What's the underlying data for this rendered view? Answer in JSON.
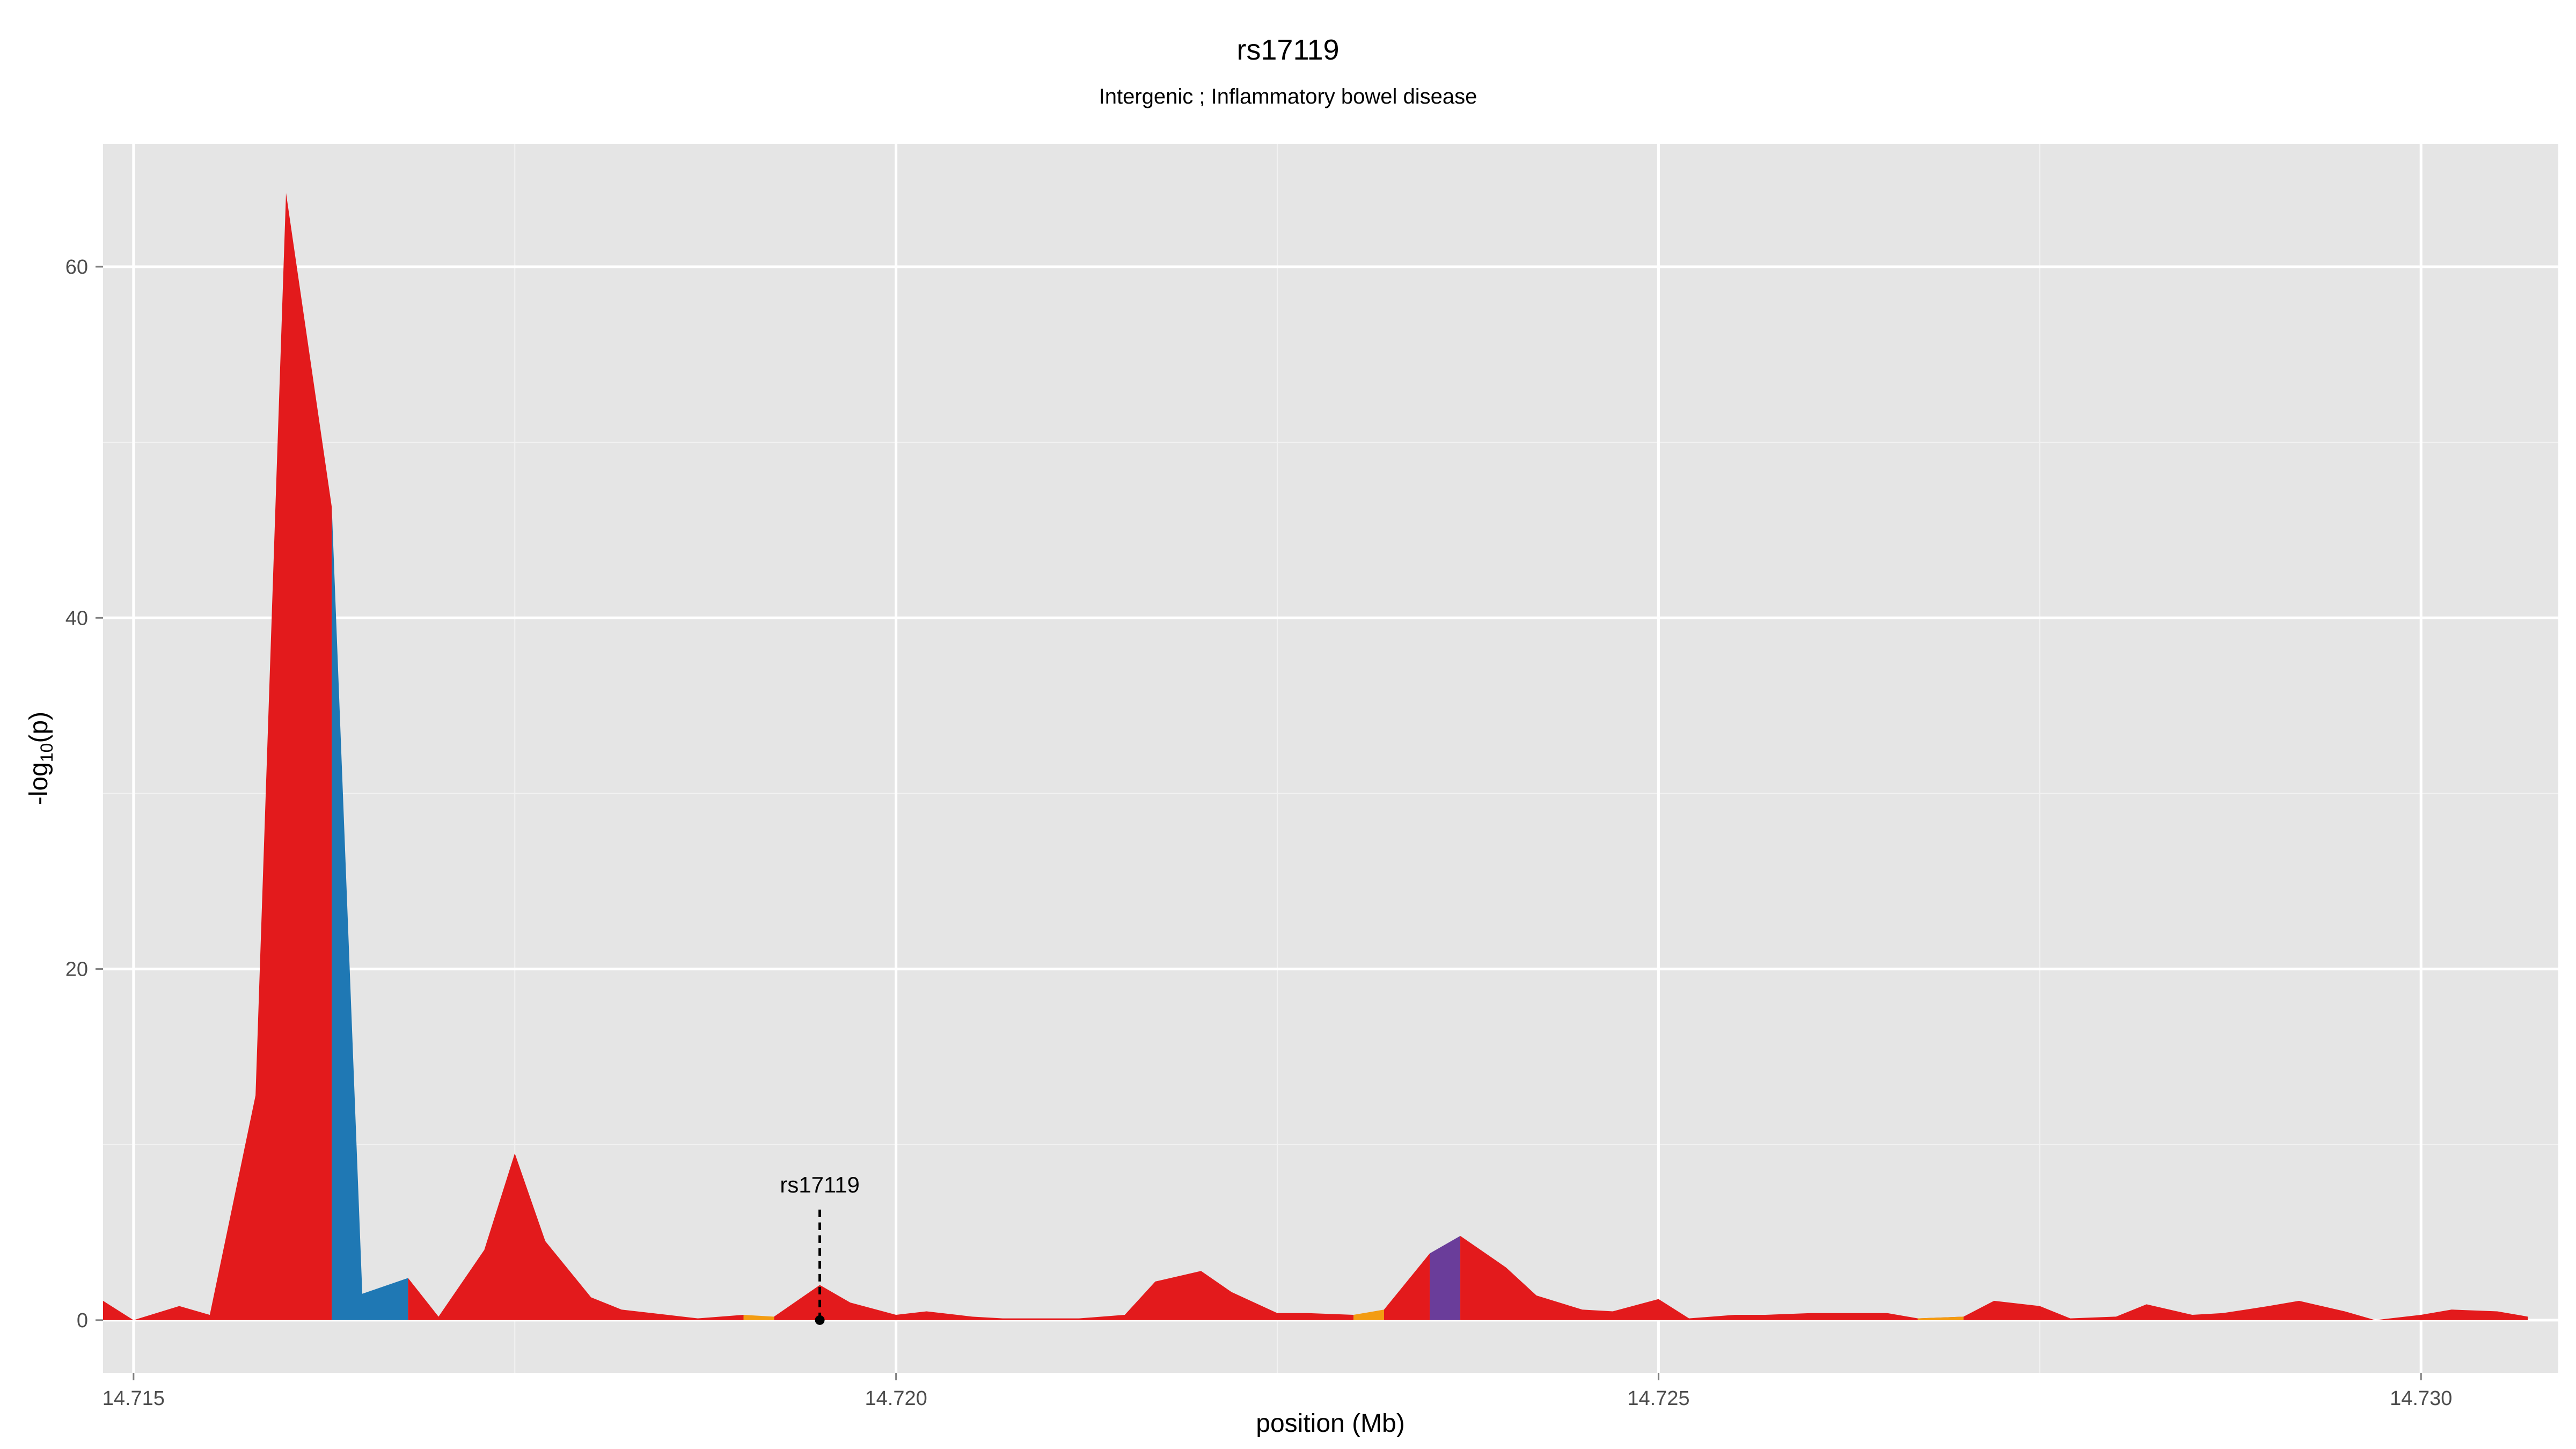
{
  "chart_data": {
    "type": "area",
    "title": "rs17119",
    "subtitle": "Intergenic ; Inflammatory bowel disease",
    "xlabel": "position (Mb)",
    "ylabel_main": "-log",
    "ylabel_sub": "10",
    "ylabel_tail": "(p)",
    "xlim": [
      14.7148,
      14.7309
    ],
    "ylim": [
      -3,
      67
    ],
    "xticks": [
      14.715,
      14.72,
      14.725,
      14.73
    ],
    "xtick_labels": [
      "14.715",
      "14.720",
      "14.725",
      "14.730"
    ],
    "yticks": [
      0,
      20,
      40,
      60
    ],
    "ytick_labels": [
      "0",
      "20",
      "40",
      "60"
    ],
    "grid": true,
    "panel_color": "#e5e5e5",
    "colors": {
      "red": "#e31a1c",
      "blue": "#1f78b4",
      "orange": "#f39c12",
      "purple": "#6a3d9a"
    },
    "annotation": {
      "label": "rs17119",
      "x": 14.7195,
      "y": 0
    },
    "series": [
      {
        "color": "red",
        "x": [
          14.7148,
          14.715
        ],
        "y": [
          1.1,
          0.0
        ]
      },
      {
        "color": "red",
        "x": [
          14.715,
          14.7153,
          14.7155,
          14.7158,
          14.716,
          14.7163
        ],
        "y": [
          0.0,
          0.8,
          0.3,
          12.8,
          64.2,
          46.3
        ]
      },
      {
        "color": "blue",
        "x": [
          14.7163,
          14.7165,
          14.7168
        ],
        "y": [
          46.3,
          1.5,
          2.4
        ]
      },
      {
        "color": "red",
        "x": [
          14.7168,
          14.717,
          14.7173,
          14.7175,
          14.7177,
          14.718,
          14.7182,
          14.7185,
          14.7187,
          14.719
        ],
        "y": [
          2.4,
          0.2,
          4.0,
          9.5,
          4.5,
          1.3,
          0.6,
          0.3,
          0.1,
          0.3
        ]
      },
      {
        "color": "orange",
        "x": [
          14.719,
          14.7192
        ],
        "y": [
          0.3,
          0.2
        ]
      },
      {
        "color": "red",
        "x": [
          14.7192,
          14.7195,
          14.7197,
          14.72,
          14.7202,
          14.7205,
          14.7207,
          14.721,
          14.7212,
          14.7215,
          14.7217,
          14.722,
          14.7222,
          14.7225,
          14.7227,
          14.723
        ],
        "y": [
          0.2,
          2.0,
          1.0,
          0.3,
          0.5,
          0.2,
          0.1,
          0.1,
          0.1,
          0.3,
          2.2,
          2.8,
          1.6,
          0.4,
          0.4,
          0.3
        ]
      },
      {
        "color": "orange",
        "x": [
          14.723,
          14.7232
        ],
        "y": [
          0.3,
          0.6
        ]
      },
      {
        "color": "red",
        "x": [
          14.7232,
          14.7235
        ],
        "y": [
          0.6,
          3.8
        ]
      },
      {
        "color": "purple",
        "x": [
          14.7235,
          14.7237
        ],
        "y": [
          3.8,
          4.8
        ]
      },
      {
        "color": "red",
        "x": [
          14.7237,
          14.724,
          14.7242,
          14.7245,
          14.7247,
          14.725,
          14.7252,
          14.7255,
          14.7257,
          14.726,
          14.7262,
          14.7265,
          14.7267,
          14.727
        ],
        "y": [
          4.8,
          3.0,
          1.4,
          0.6,
          0.5,
          1.2,
          0.1,
          0.3,
          0.3,
          0.4,
          0.4,
          0.4,
          0.1,
          0.2
        ]
      },
      {
        "color": "orange",
        "x": [
          14.7267,
          14.727
        ],
        "y": [
          0.1,
          0.2
        ]
      },
      {
        "color": "red",
        "x": [
          14.727,
          14.7272,
          14.7275,
          14.7277,
          14.728,
          14.7282,
          14.7285,
          14.7287,
          14.729,
          14.7292,
          14.7295,
          14.7297,
          14.73,
          14.7302,
          14.7305,
          14.7307
        ],
        "y": [
          0.2,
          1.1,
          0.8,
          0.1,
          0.2,
          0.9,
          0.3,
          0.4,
          0.8,
          1.1,
          0.5,
          0.0,
          0.3,
          0.6,
          0.5,
          0.2
        ]
      }
    ]
  }
}
